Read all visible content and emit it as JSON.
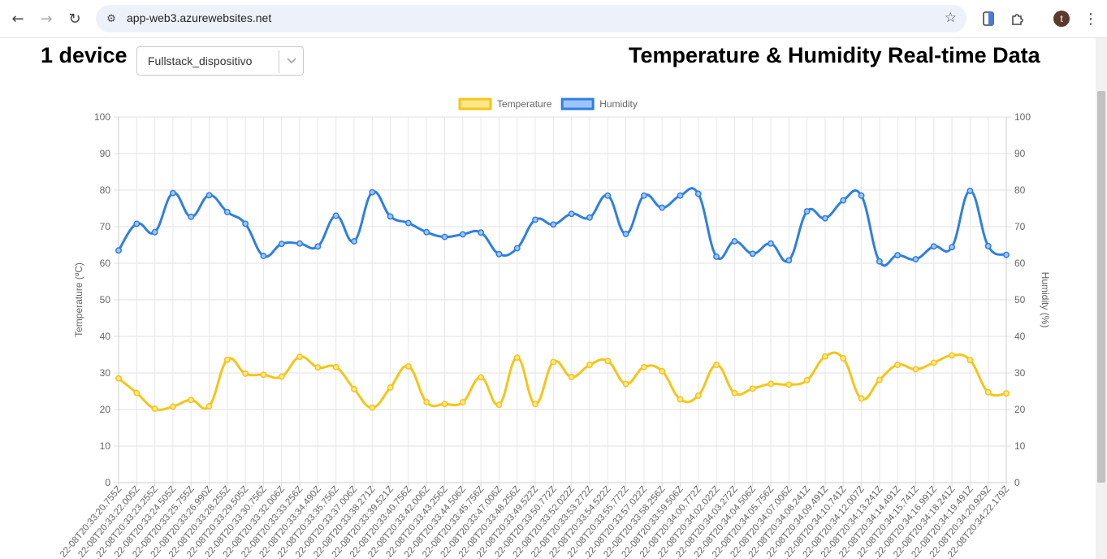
{
  "browser": {
    "url": "app-web3.azurewebsites.net",
    "avatar_letter": "t"
  },
  "header": {
    "device_count": "1 device",
    "selected_device": "Fullstack_dispositivo",
    "title": "Temperature & Humidity Real-time Data"
  },
  "chart_data": {
    "type": "line",
    "legend_position": "top",
    "grid": true,
    "left_axis_label": "Temperature (ºC)",
    "right_axis_label": "Humidity (%)",
    "ylim": [
      0,
      100
    ],
    "y_ticks": [
      0,
      10,
      20,
      30,
      40,
      50,
      60,
      70,
      80,
      90,
      100
    ],
    "x": [
      "…22-08T20:33:20.755Z",
      "…22-08T20:33:22.005Z",
      "…22-08T20:33:23.255Z",
      "…22-08T20:33:24.505Z",
      "…22-08T20:33:25.755Z",
      "…22-08T20:33:26.990Z",
      "…22-08T20:33:28.255Z",
      "…22-08T20:33:29.505Z",
      "…22-08T20:33:30.756Z",
      "…22-08T20:33:32.006Z",
      "…22-08T20:33:33.256Z",
      "…22-08T20:33:34.490Z",
      "…22-08T20:33:35.756Z",
      "…22-08T20:33:37.006Z",
      "…22-08T20:33:38.271Z",
      "…22-08T20:33:39.521Z",
      "…22-08T20:33:40.756Z",
      "…22-08T20:33:42.006Z",
      "…22-08T20:33:43.256Z",
      "…22-08T20:33:44.506Z",
      "…22-08T20:33:45.756Z",
      "…22-08T20:33:47.006Z",
      "…22-08T20:33:48.256Z",
      "…22-08T20:33:49.522Z",
      "…22-08T20:33:50.772Z",
      "…22-08T20:33:52.022Z",
      "…22-08T20:33:53.272Z",
      "…22-08T20:33:54.522Z",
      "…22-08T20:33:55.772Z",
      "…22-08T20:33:57.022Z",
      "…22-08T20:33:58.256Z",
      "…22-08T20:33:59.506Z",
      "…22-08T20:34:00.772Z",
      "…22-08T20:34:02.022Z",
      "…22-08T20:34:03.272Z",
      "…22-08T20:34:04.506Z",
      "…22-08T20:34:05.756Z",
      "…22-08T20:34:07.006Z",
      "…22-08T20:34:08.241Z",
      "…22-08T20:34:09.491Z",
      "…22-08T20:34:10.741Z",
      "…22-08T20:34:12.007Z",
      "…22-08T20:34:13.241Z",
      "…22-08T20:34:14.491Z",
      "…22-08T20:34:15.741Z",
      "…22-08T20:34:16.991Z",
      "…22-08T20:34:18.241Z",
      "…22-08T20:34:19.491Z",
      "…22-08T20:34:20.929Z",
      "…22-08T20:34:22.179Z"
    ],
    "series": [
      {
        "name": "Temperature",
        "color": "#f5c518",
        "fill": "#fde68a",
        "axis": "left",
        "values": [
          28.5,
          24.5,
          20.2,
          20.8,
          22.6,
          20.9,
          33.6,
          29.8,
          29.5,
          29.0,
          34.4,
          31.5,
          31.6,
          25.6,
          20.5,
          26.0,
          31.8,
          22.0,
          21.5,
          22.0,
          28.8,
          21.3,
          34.2,
          21.5,
          33.0,
          28.9,
          32.2,
          33.3,
          27.0,
          31.6,
          30.5,
          22.8,
          23.8,
          32.2,
          24.5,
          25.7,
          27.0,
          26.8,
          28.0,
          34.5,
          34.0,
          23.0,
          28.1,
          32.2,
          31.0,
          32.8,
          34.8,
          33.5,
          24.7,
          24.4
        ]
      },
      {
        "name": "Humidity",
        "color": "#2f7fe0",
        "fill": "#9ec5fb",
        "axis": "right",
        "values": [
          63.5,
          70.8,
          68.5,
          79.2,
          72.7,
          78.6,
          74.0,
          70.8,
          62.0,
          65.3,
          65.4,
          64.6,
          73.0,
          66.0,
          79.4,
          72.8,
          71.0,
          68.5,
          67.2,
          67.9,
          68.4,
          62.5,
          64.1,
          71.9,
          70.6,
          73.5,
          72.5,
          78.5,
          68.0,
          78.5,
          75.2,
          78.5,
          79.0,
          61.8,
          66.0,
          62.6,
          65.4,
          60.8,
          74.2,
          72.3,
          77.2,
          78.5,
          60.5,
          62.2,
          61.1,
          64.6,
          64.4,
          79.8,
          64.7,
          62.3
        ]
      }
    ]
  }
}
